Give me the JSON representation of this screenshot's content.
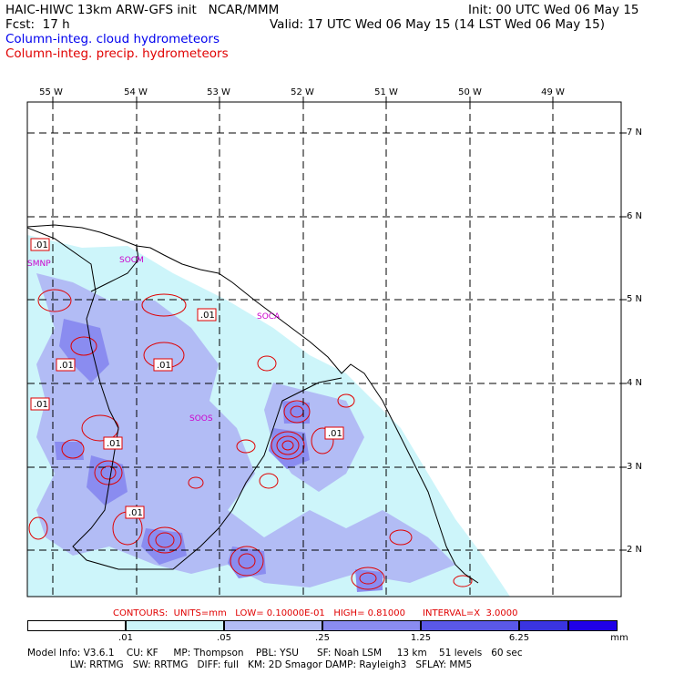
{
  "header": {
    "title": "HAIC-HIWC 13km ARW-GFS init   NCAR/MMM",
    "init": "Init: 00 UTC Wed 06 May 15",
    "fcst": "Fcst:  17 h",
    "valid": "Valid: 17 UTC Wed 06 May 15 (14 LST Wed 06 May 15)",
    "legend_cloud": "Column-integ. cloud hydrometeors",
    "legend_precip": "Column-integ. precip. hydrometeors"
  },
  "map": {
    "lon_labels": [
      "55 W",
      "54 W",
      "53 W",
      "52 W",
      "51 W",
      "50 W",
      "49 W"
    ],
    "lat_labels": [
      "7 N",
      "6 N",
      "5 N",
      "4 N",
      "3 N",
      "2 N"
    ],
    "stations": [
      "SMNP",
      "SOCM",
      "SOCA",
      "SOOS"
    ],
    "contour_labels": [
      ".01",
      ".01",
      ".01",
      ".01",
      ".01",
      ".01",
      ".01",
      ".01"
    ],
    "colors": {
      "level1": "#cdf5fa",
      "level2": "#b2bcf5",
      "level3": "#8a8cf0",
      "level4": "#5a58e8",
      "contour": "#e00000",
      "station": "#cc00cc"
    }
  },
  "contours_line": "CONTOURS:  UNITS=mm   LOW= 0.10000E-01   HIGH= 0.81000      INTERVAL=X  3.0000",
  "colorbar": {
    "labels": [
      ".01",
      ".05",
      ".25",
      "1.25",
      "6.25"
    ],
    "unit": "mm",
    "colors": [
      "#ffffff",
      "#cdf5fa",
      "#b2bcf5",
      "#8a8cf0",
      "#5a58e8",
      "#3a34e0",
      "#2000e8"
    ]
  },
  "footer": {
    "line1": "Model Info: V3.6.1    CU: KF     MP: Thompson    PBL: YSU      SF: Noah LSM     13 km    51 levels   60 sec",
    "line2": "              LW: RRTMG   SW: RRTMG   DIFF: full   KM: 2D Smagor DAMP: Rayleigh3   SFLAY: MM5"
  }
}
